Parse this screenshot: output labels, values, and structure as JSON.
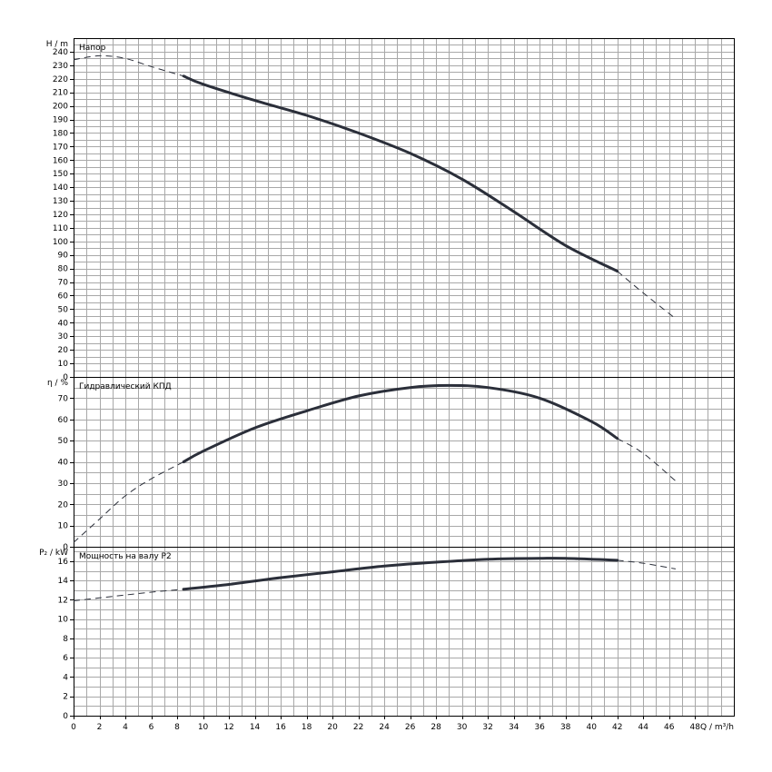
{
  "chart_data": [
    {
      "type": "line",
      "title": "Напор",
      "ylabel": "H / m",
      "ylim": [
        0,
        250
      ],
      "yticks": [
        0,
        10,
        20,
        30,
        40,
        50,
        60,
        70,
        80,
        90,
        100,
        110,
        120,
        130,
        140,
        150,
        160,
        170,
        180,
        190,
        200,
        210,
        220,
        230,
        240
      ],
      "grid": true,
      "series": [
        {
          "style": "dashed",
          "x": [
            0,
            2,
            4,
            6,
            8.5
          ],
          "y": [
            234,
            237,
            235,
            229,
            222
          ]
        },
        {
          "style": "solid",
          "x": [
            8.5,
            10,
            14,
            18,
            22,
            26,
            30,
            34,
            38,
            42
          ],
          "y": [
            222,
            216,
            204,
            193,
            180,
            165,
            146,
            122,
            97,
            78
          ]
        },
        {
          "style": "dashed",
          "x": [
            42,
            44,
            46.5
          ],
          "y": [
            78,
            62,
            43
          ]
        }
      ]
    },
    {
      "type": "line",
      "title": "Гидравлический КПД",
      "ylabel": "η / %",
      "ylim": [
        0,
        80
      ],
      "yticks": [
        0,
        10,
        20,
        30,
        40,
        50,
        60,
        70
      ],
      "grid": true,
      "series": [
        {
          "style": "dashed",
          "x": [
            0,
            2,
            4,
            6,
            8.5
          ],
          "y": [
            2,
            13,
            24,
            32,
            40
          ]
        },
        {
          "style": "solid",
          "x": [
            8.5,
            10,
            14,
            18,
            22,
            26,
            29,
            32,
            36,
            40,
            42
          ],
          "y": [
            40,
            45,
            56,
            64,
            71,
            75,
            76,
            75,
            70,
            59,
            51
          ]
        },
        {
          "style": "dashed",
          "x": [
            42,
            44,
            46.5
          ],
          "y": [
            51,
            44,
            31
          ]
        }
      ]
    },
    {
      "type": "line",
      "title": "Мощность на валу P2",
      "ylabel": "P₂ / kW",
      "ylim": [
        0,
        17.5
      ],
      "yticks": [
        0,
        2,
        4,
        6,
        8,
        10,
        12,
        14,
        16
      ],
      "grid": true,
      "series": [
        {
          "style": "dashed",
          "x": [
            0,
            2,
            4,
            6,
            8.5
          ],
          "y": [
            11.9,
            12.2,
            12.5,
            12.8,
            13.1
          ]
        },
        {
          "style": "solid",
          "x": [
            8.5,
            12,
            16,
            20,
            24,
            28,
            32,
            36,
            38,
            42
          ],
          "y": [
            13.1,
            13.6,
            14.3,
            14.9,
            15.5,
            15.9,
            16.2,
            16.3,
            16.3,
            16.1
          ]
        },
        {
          "style": "dashed",
          "x": [
            42,
            44,
            46.5
          ],
          "y": [
            16.1,
            15.8,
            15.2
          ]
        }
      ]
    }
  ],
  "x_axis": {
    "label": "Q / m³/h",
    "xlim": [
      0,
      51
    ],
    "ticks": [
      0,
      2,
      4,
      6,
      8,
      10,
      12,
      14,
      16,
      18,
      20,
      22,
      24,
      26,
      28,
      30,
      32,
      34,
      36,
      38,
      40,
      42,
      44,
      46,
      48
    ]
  },
  "colors": {
    "curve": "#2b2f3a",
    "grid": "#a8a8a8",
    "frame": "#000000"
  }
}
